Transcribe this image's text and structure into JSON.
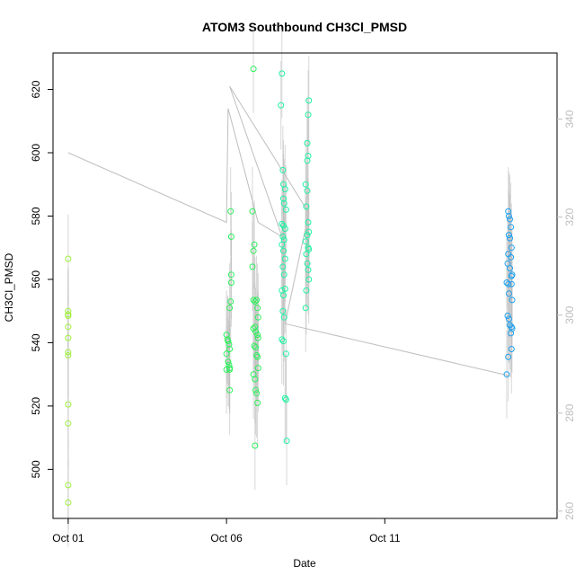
{
  "chart_data": {
    "type": "scatter",
    "title": "ATOM3 Southbound CH3Cl_PMSD",
    "xlabel": "Date",
    "ylabel": "CH3Cl_PMSD",
    "x_ticks": [
      "Oct 01",
      "Oct 06",
      "Oct 11"
    ],
    "x_tick_days": [
      1,
      6,
      11
    ],
    "xlim": [
      0.52,
      16.44
    ],
    "ylim": [
      484.5,
      631.5
    ],
    "y_ticks": [
      500,
      520,
      540,
      560,
      580,
      600,
      620
    ],
    "y2lim": [
      258.5,
      353.5
    ],
    "y2_ticks": [
      260,
      280,
      300,
      320,
      340
    ],
    "grid": false,
    "colors": {
      "axis": "#000000",
      "secondary": "#bebebe",
      "line": "#bebebe"
    },
    "series": [
      {
        "color": "#9cf03a",
        "points": [
          [
            1.0,
            566.5
          ],
          [
            1.0,
            550
          ],
          [
            1.0,
            549
          ],
          [
            1.0,
            548.5
          ],
          [
            1.0,
            545
          ],
          [
            1.0,
            541.5
          ],
          [
            1.0,
            537
          ],
          [
            1.0,
            536
          ],
          [
            1.0,
            520.5
          ],
          [
            1.0,
            514.5
          ],
          [
            1.0,
            495
          ],
          [
            1.0,
            489.5
          ]
        ]
      },
      {
        "color": "#2cf05a",
        "points": [
          [
            6.0,
            542.5
          ],
          [
            6.03,
            541
          ],
          [
            6.05,
            540.5
          ],
          [
            6.08,
            539.5
          ],
          [
            6.1,
            538
          ],
          [
            6.0,
            536.5
          ],
          [
            6.05,
            534
          ],
          [
            6.08,
            533
          ],
          [
            6.1,
            532
          ],
          [
            6.0,
            531.5
          ],
          [
            6.1,
            531.5
          ],
          [
            6.13,
            581.5
          ],
          [
            6.15,
            573.5
          ],
          [
            6.15,
            561.5
          ],
          [
            6.15,
            559
          ],
          [
            6.13,
            553
          ],
          [
            6.1,
            551
          ],
          [
            6.1,
            525
          ],
          [
            6.85,
            626.5
          ],
          [
            6.82,
            581.5
          ],
          [
            6.88,
            571
          ],
          [
            6.85,
            569
          ],
          [
            6.82,
            564
          ],
          [
            6.85,
            553.5
          ],
          [
            6.9,
            553
          ],
          [
            6.95,
            553.5
          ],
          [
            6.98,
            551
          ],
          [
            7.0,
            548
          ],
          [
            6.85,
            544.5
          ],
          [
            6.9,
            545
          ],
          [
            6.92,
            543.5
          ],
          [
            6.98,
            542.5
          ],
          [
            7.0,
            541.5
          ],
          [
            6.88,
            539
          ],
          [
            6.92,
            538.5
          ],
          [
            6.95,
            536
          ],
          [
            6.98,
            535.5
          ],
          [
            7.0,
            532
          ],
          [
            6.85,
            530
          ],
          [
            6.9,
            528.5
          ],
          [
            6.92,
            525
          ],
          [
            6.95,
            524
          ],
          [
            6.98,
            521
          ],
          [
            6.9,
            507.5
          ]
        ]
      },
      {
        "color": "#1ef3a0",
        "points": [
          [
            7.75,
            625
          ],
          [
            7.72,
            615
          ],
          [
            7.78,
            594.5
          ],
          [
            7.8,
            590
          ],
          [
            7.85,
            588.5
          ],
          [
            7.8,
            585.5
          ],
          [
            7.82,
            584
          ],
          [
            7.88,
            582
          ],
          [
            7.75,
            577.5
          ],
          [
            7.8,
            577
          ],
          [
            7.85,
            576
          ],
          [
            7.78,
            573.5
          ],
          [
            7.82,
            572.5
          ],
          [
            7.75,
            571
          ],
          [
            7.8,
            569
          ],
          [
            7.85,
            566.5
          ],
          [
            7.78,
            564
          ],
          [
            7.82,
            561.5
          ],
          [
            7.75,
            556.5
          ],
          [
            7.8,
            555
          ],
          [
            7.85,
            557
          ],
          [
            7.78,
            550
          ],
          [
            7.82,
            548
          ],
          [
            7.75,
            541
          ],
          [
            7.8,
            540.5
          ],
          [
            7.88,
            536.5
          ],
          [
            7.85,
            522.5
          ],
          [
            7.88,
            522
          ],
          [
            7.9,
            509
          ],
          [
            8.6,
            616.5
          ],
          [
            8.58,
            612
          ],
          [
            8.55,
            603
          ],
          [
            8.58,
            599
          ],
          [
            8.55,
            597.5
          ],
          [
            8.5,
            590
          ],
          [
            8.55,
            588
          ],
          [
            8.52,
            583
          ],
          [
            8.58,
            578
          ],
          [
            8.6,
            575
          ],
          [
            8.55,
            574
          ],
          [
            8.5,
            572
          ],
          [
            8.58,
            570
          ],
          [
            8.6,
            569.5
          ],
          [
            8.52,
            568
          ],
          [
            8.55,
            565
          ],
          [
            8.58,
            563
          ],
          [
            8.6,
            560
          ],
          [
            8.52,
            556.5
          ],
          [
            8.5,
            551
          ]
        ]
      },
      {
        "color": "#1ea0f0",
        "points": [
          [
            14.9,
            581.5
          ],
          [
            14.92,
            580
          ],
          [
            14.95,
            579
          ],
          [
            14.98,
            576.5
          ],
          [
            14.92,
            574
          ],
          [
            14.95,
            573
          ],
          [
            15.0,
            570
          ],
          [
            14.9,
            568
          ],
          [
            14.98,
            567
          ],
          [
            14.88,
            565
          ],
          [
            14.95,
            563.5
          ],
          [
            15.0,
            561
          ],
          [
            15.02,
            561.5
          ],
          [
            14.85,
            559
          ],
          [
            14.9,
            558.5
          ],
          [
            15.0,
            558.5
          ],
          [
            14.92,
            555.5
          ],
          [
            15.02,
            553.5
          ],
          [
            14.88,
            548.5
          ],
          [
            14.92,
            547.5
          ],
          [
            14.95,
            545.5
          ],
          [
            15.0,
            545
          ],
          [
            15.02,
            544.5
          ],
          [
            14.98,
            543
          ],
          [
            14.9,
            535.5
          ],
          [
            15.0,
            538
          ],
          [
            14.85,
            530
          ]
        ]
      }
    ],
    "line": [
      [
        1.0,
        600
      ],
      [
        6.0,
        578
      ],
      [
        6.05,
        614
      ],
      [
        7.0,
        578
      ],
      [
        7.75,
        573.5
      ],
      [
        6.1,
        621
      ],
      [
        8.6,
        581
      ],
      [
        7.85,
        546
      ],
      [
        14.95,
        529.5
      ]
    ]
  }
}
